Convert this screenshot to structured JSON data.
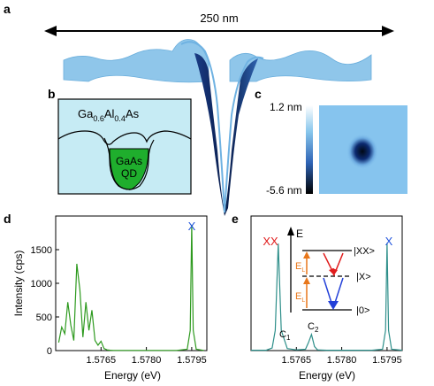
{
  "panels": {
    "a": {
      "letter": "a",
      "scale_label": "250 nm"
    },
    "b": {
      "letter": "b",
      "matrix_label": "Ga",
      "matrix_sub1": "0.6",
      "matrix_mid": "Al",
      "matrix_sub2": "0.4",
      "matrix_end": "As",
      "qd_line1": "GaAs",
      "qd_line2": "QD"
    },
    "c": {
      "letter": "c",
      "colorbar_max": "1.2 nm",
      "colorbar_min": "-5.6 nm"
    },
    "d": {
      "letter": "d",
      "peak_label": "X"
    },
    "e": {
      "letter": "e",
      "xx_label": "XX",
      "x_label": "X",
      "c1_main": "C",
      "c1_sub": "1",
      "c2_main": "C",
      "c2_sub": "2",
      "energy_axis": "E",
      "level_xx": "|XX>",
      "level_x": "|X>",
      "level_0": "|0>",
      "el_main_upper": "E",
      "el_main_lower": "E",
      "el_sub": "L"
    }
  },
  "chart_data": [
    {
      "type": "line",
      "panel": "d",
      "xlabel": "Energy (eV)",
      "ylabel": "Intensity (cps)",
      "xlim": [
        1.575,
        1.58
      ],
      "ylim": [
        0,
        2000
      ],
      "xticks": [
        "1.5765",
        "1.5780",
        "1.5795"
      ],
      "yticks": [
        "0",
        "500",
        "1000",
        "1500"
      ],
      "color": "#2e9a1f",
      "series": [
        {
          "x": [
            1.5751,
            1.5752,
            1.5753,
            1.5754,
            1.5755,
            1.5756,
            1.5757,
            1.5758,
            1.5759,
            1.576,
            1.5761,
            1.5762,
            1.5763,
            1.5764,
            1.5765,
            1.5766,
            1.5767,
            1.5768,
            1.5769,
            1.577,
            1.5775,
            1.578,
            1.5785,
            1.579,
            1.57935,
            1.57945,
            1.5795,
            1.57955,
            1.57965,
            1.5799
          ],
          "y": [
            120,
            350,
            250,
            720,
            380,
            150,
            1290,
            900,
            200,
            720,
            300,
            600,
            150,
            80,
            140,
            30,
            10,
            5,
            3,
            2,
            2,
            2,
            2,
            2,
            20,
            300,
            1870,
            300,
            20,
            2
          ]
        }
      ]
    },
    {
      "type": "line",
      "panel": "e",
      "xlabel": "Energy (eV)",
      "ylabel": "",
      "xlim": [
        1.575,
        1.58
      ],
      "ylim": [
        0,
        2000
      ],
      "xticks": [
        "1.5765",
        "1.5780",
        "1.5795"
      ],
      "color": "#2e8f8a",
      "series": [
        {
          "x": [
            1.575,
            1.5755,
            1.5757,
            1.5758,
            1.5759,
            1.576,
            1.5762,
            1.5765,
            1.5768,
            1.5769,
            1.577,
            1.5771,
            1.5772,
            1.5775,
            1.578,
            1.5785,
            1.579,
            1.57935,
            1.57945,
            1.5795,
            1.57955,
            1.57965,
            1.58
          ],
          "y": [
            5,
            5,
            40,
            300,
            1590,
            300,
            30,
            10,
            20,
            120,
            240,
            60,
            10,
            5,
            5,
            5,
            5,
            20,
            300,
            1600,
            300,
            20,
            5
          ]
        }
      ]
    }
  ]
}
